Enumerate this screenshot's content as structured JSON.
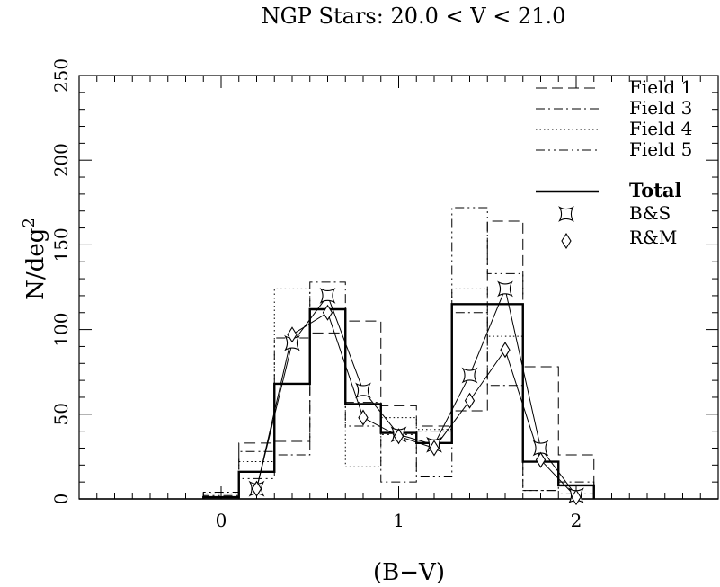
{
  "chart_data": {
    "type": "line",
    "title": "NGP Stars:  20.0 < V <  21.0",
    "xlabel": "(B−V)",
    "ylabel_base": "N/deg",
    "ylabel_sup": "2",
    "xlim": [
      -0.8,
      2.8
    ],
    "ylim": [
      0,
      250
    ],
    "x_ticks": [
      {
        "value": 0,
        "label": "0"
      },
      {
        "value": 1,
        "label": "1"
      },
      {
        "value": 2,
        "label": "2"
      }
    ],
    "y_ticks": [
      {
        "value": 0,
        "label": "0"
      },
      {
        "value": 50,
        "label": "50"
      },
      {
        "value": 100,
        "label": "100"
      },
      {
        "value": 150,
        "label": "150"
      },
      {
        "value": 200,
        "label": "200"
      },
      {
        "value": 250,
        "label": "250"
      }
    ],
    "bin_edges": [
      -0.1,
      0.1,
      0.3,
      0.5,
      0.7,
      0.9,
      1.1,
      1.3,
      1.5,
      1.7,
      1.9,
      2.1
    ],
    "histograms": [
      {
        "name": "Field 1",
        "style": "dashed",
        "values": [
          1,
          33,
          34,
          98,
          105,
          55,
          43,
          52,
          164,
          78,
          26
        ]
      },
      {
        "name": "Field 3",
        "style": "dashdot",
        "values": [
          4,
          28,
          26,
          128,
          57,
          10,
          40,
          110,
          67,
          5,
          10
        ]
      },
      {
        "name": "Field 4",
        "style": "dotted",
        "values": [
          3,
          22,
          124,
          112,
          19,
          48,
          41,
          124,
          96,
          22,
          8
        ]
      },
      {
        "name": "Field 5",
        "style": "dashdotdot",
        "values": [
          2,
          12,
          95,
          108,
          43,
          38,
          13,
          172,
          133,
          5,
          3
        ]
      },
      {
        "name": "Total",
        "style": "solid",
        "values": [
          1,
          16,
          68,
          112,
          56,
          39,
          33,
          115,
          115,
          22,
          8
        ]
      }
    ],
    "series": [
      {
        "name": "B&S",
        "marker": "curved-square",
        "x": [
          0.2,
          0.4,
          0.6,
          0.8,
          1.0,
          1.2,
          1.4,
          1.6,
          1.8,
          2.0
        ],
        "y": [
          6,
          92,
          120,
          64,
          38,
          32,
          73,
          124,
          30,
          2
        ]
      },
      {
        "name": "R&M",
        "marker": "diamond",
        "x": [
          0.2,
          0.4,
          0.6,
          0.8,
          1.0,
          1.2,
          1.4,
          1.6,
          1.8,
          2.0
        ],
        "y": [
          6,
          97,
          110,
          48,
          37,
          30,
          58,
          88,
          23,
          1
        ]
      }
    ],
    "legend": {
      "placement": "top-right",
      "entries": [
        {
          "label": "Field 1",
          "style": "dashed",
          "kind": "line"
        },
        {
          "label": "Field 3",
          "style": "dashdot",
          "kind": "line"
        },
        {
          "label": "Field 4",
          "style": "dotted",
          "kind": "line"
        },
        {
          "label": "Field 5",
          "style": "dashdotdot",
          "kind": "line"
        },
        {
          "label": "Total",
          "style": "solid",
          "kind": "line",
          "bold": true
        },
        {
          "label": "B&S",
          "kind": "marker",
          "marker": "curved-square"
        },
        {
          "label": "R&M",
          "kind": "marker",
          "marker": "diamond"
        }
      ]
    }
  }
}
